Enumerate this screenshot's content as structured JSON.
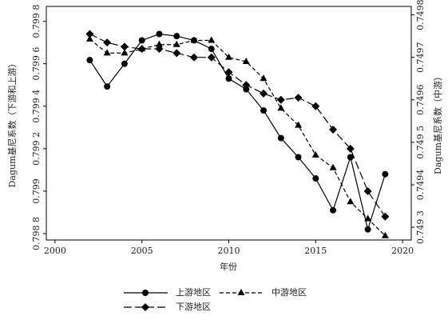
{
  "chart_data": {
    "type": "line",
    "xlabel": "年份",
    "ylabel": "Dagum基尼系数（下游和上游）",
    "y2label": "Dagum基尼系数（中游）",
    "x": [
      2002,
      2003,
      2004,
      2005,
      2006,
      2007,
      2008,
      2009,
      2010,
      2011,
      2012,
      2013,
      2014,
      2015,
      2016,
      2017,
      2018,
      2019
    ],
    "xlim": [
      1999.5,
      2020.5
    ],
    "xticks": [
      2000,
      2005,
      2010,
      2015,
      2020
    ],
    "ylim": [
      0.79877,
      0.79987
    ],
    "yticks": [
      {
        "value": 0.7988,
        "label": "0.798 8"
      },
      0.799,
      {
        "value": 0.7992,
        "label": "0.799 2"
      },
      {
        "value": 0.7994,
        "label": "0.799 4"
      },
      {
        "value": 0.7996,
        "label": "0.799 6"
      },
      {
        "value": 0.7998,
        "label": "0.799 8"
      }
    ],
    "y2lim": [
      0.74927,
      0.74982
    ],
    "y2ticks": [
      {
        "value": 0.7493,
        "label": "0.749 3"
      },
      0.7494,
      {
        "value": 0.7495,
        "label": "0.749 5"
      },
      0.7496,
      0.7497,
      0.7498
    ],
    "legend": "bottom",
    "series": [
      {
        "name": "上游地区",
        "color": "#000000",
        "marker": "circle",
        "line_style": "solid",
        "axis": "y",
        "values": [
          0.799617,
          0.799493,
          0.7996,
          0.79971,
          0.79974,
          0.79973,
          0.79971,
          0.79967,
          0.79953,
          0.79948,
          0.79938,
          0.79925,
          0.79916,
          0.79906,
          0.79891,
          0.79916,
          0.79882,
          0.79908
        ]
      },
      {
        "name": "中游地区",
        "color": "#000000",
        "marker": "triangle",
        "line_style": "dashed",
        "axis": "y2",
        "values": [
          0.749743,
          0.74971,
          0.74971,
          0.74972,
          0.74973,
          0.74973,
          0.74974,
          0.74974,
          0.7497,
          0.74969,
          0.74965,
          0.74958,
          0.74954,
          0.74947,
          0.74944,
          0.74936,
          0.74932,
          0.74928
        ]
      },
      {
        "name": "下游地区",
        "color": "#000000",
        "marker": "diamond",
        "line_style": "longdash",
        "axis": "y",
        "values": [
          0.79974,
          0.7997,
          0.79968,
          0.79967,
          0.79967,
          0.79965,
          0.79963,
          0.79963,
          0.79956,
          0.7995,
          0.79946,
          0.79943,
          0.79944,
          0.7994,
          0.79929,
          0.7992,
          0.799,
          0.79888
        ]
      }
    ]
  }
}
